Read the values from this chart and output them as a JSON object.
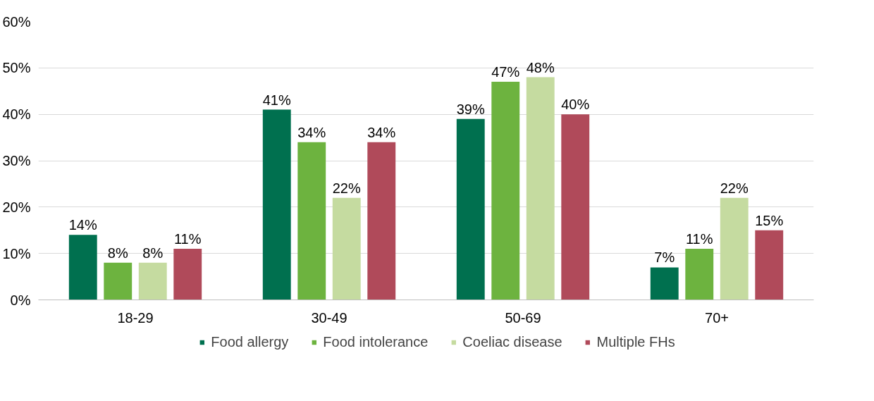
{
  "chart_data": {
    "type": "bar",
    "categories": [
      "18-29",
      "30-49",
      "50-69",
      "70+"
    ],
    "series": [
      {
        "name": "Food allergy",
        "color": "#00704f",
        "values": [
          14,
          41,
          39,
          7
        ],
        "value_labels": [
          "14%",
          "41%",
          "39%",
          "7%"
        ]
      },
      {
        "name": "Food intolerance",
        "color": "#6db33f",
        "values": [
          8,
          34,
          47,
          11
        ],
        "value_labels": [
          "8%",
          "34%",
          "47%",
          "11%"
        ]
      },
      {
        "name": "Coeliac disease",
        "color": "#c5dba0",
        "values": [
          8,
          22,
          48,
          22
        ],
        "value_labels": [
          "8%",
          "22%",
          "48%",
          "22%"
        ]
      },
      {
        "name": "Multiple FHs",
        "color": "#b04a5a",
        "values": [
          11,
          34,
          40,
          15
        ],
        "value_labels": [
          "11%",
          "34%",
          "40%",
          "15%"
        ]
      }
    ],
    "ylim": [
      0,
      60
    ],
    "yticks": [
      {
        "value": 0,
        "label": "0%"
      },
      {
        "value": 10,
        "label": "10%"
      },
      {
        "value": 20,
        "label": "20%"
      },
      {
        "value": 30,
        "label": "30%"
      },
      {
        "value": 40,
        "label": "40%"
      },
      {
        "value": 50,
        "label": "50%"
      },
      {
        "value": 60,
        "label": "60%"
      }
    ],
    "grid": "y",
    "legend": "bottom"
  }
}
